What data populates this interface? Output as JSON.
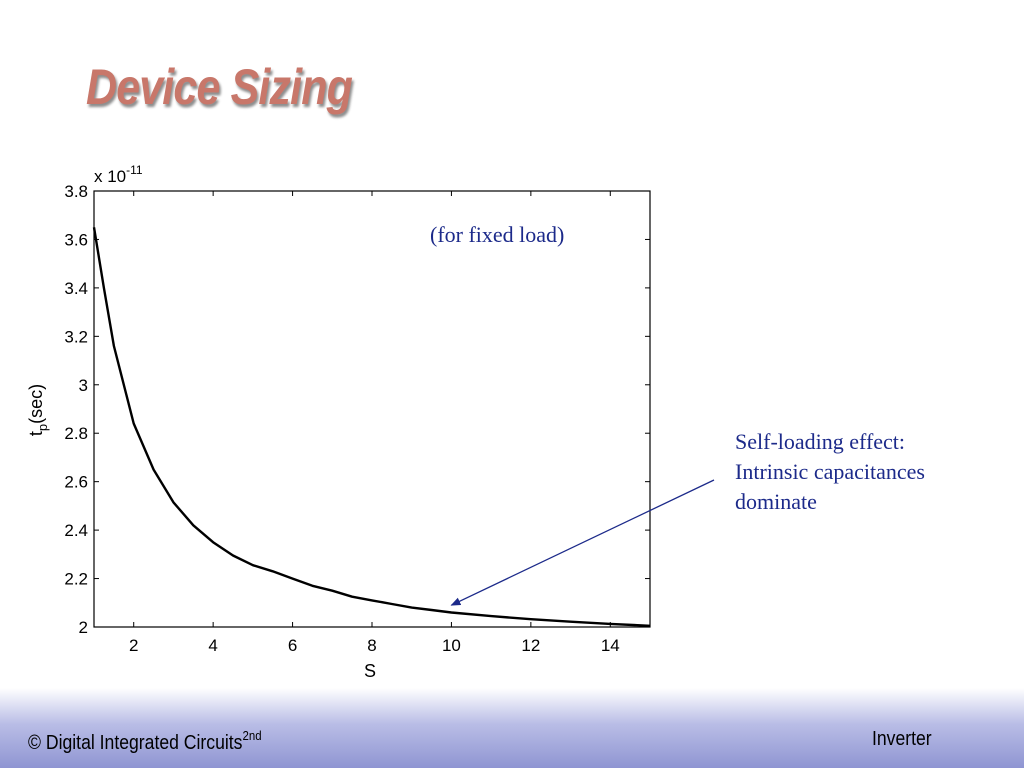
{
  "slide": {
    "title": "Device Sizing"
  },
  "annotations": {
    "fixed_load": "(for fixed load)",
    "self_loading_lines": [
      "Self-loading effect:",
      "Intrinsic capacitances",
      "dominate"
    ]
  },
  "footer": {
    "left_text": "© Digital Integrated Circuits",
    "left_superscript": "2nd",
    "right_text": "Inverter"
  },
  "colors": {
    "title": "#c8776a",
    "annotation": "#1c2a8a",
    "curve": "#000000",
    "arrow": "#1c2a8a"
  },
  "chart_data": {
    "type": "line",
    "xlabel": "S",
    "ylabel_main": "t",
    "ylabel_sub": "p",
    "ylabel_unit": "(sec)",
    "y_multiplier_base": "x 10",
    "y_multiplier_exponent": "-11",
    "xlim": [
      1,
      15
    ],
    "ylim": [
      2,
      3.8
    ],
    "x_ticks": [
      2,
      4,
      6,
      8,
      10,
      12,
      14
    ],
    "y_ticks": [
      2,
      2.2,
      2.4,
      2.6,
      2.8,
      3,
      3.2,
      3.4,
      3.6,
      3.8
    ],
    "grid": false,
    "series": [
      {
        "x": [
          1,
          1.25,
          1.5,
          2,
          2.5,
          3,
          3.5,
          4,
          4.5,
          5,
          5.5,
          6,
          6.5,
          7,
          7.5,
          8,
          8.5,
          9,
          9.5,
          10,
          11,
          12,
          13,
          14,
          15
        ],
        "y": [
          3.65,
          3.4,
          3.16,
          2.84,
          2.65,
          2.515,
          2.42,
          2.35,
          2.295,
          2.255,
          2.23,
          2.2,
          2.17,
          2.15,
          2.125,
          2.11,
          2.095,
          2.08,
          2.07,
          2.06,
          2.045,
          2.032,
          2.022,
          2.013,
          2.005
        ]
      }
    ],
    "annotation_arrow_target": {
      "x": 10,
      "y": 2.09
    }
  }
}
